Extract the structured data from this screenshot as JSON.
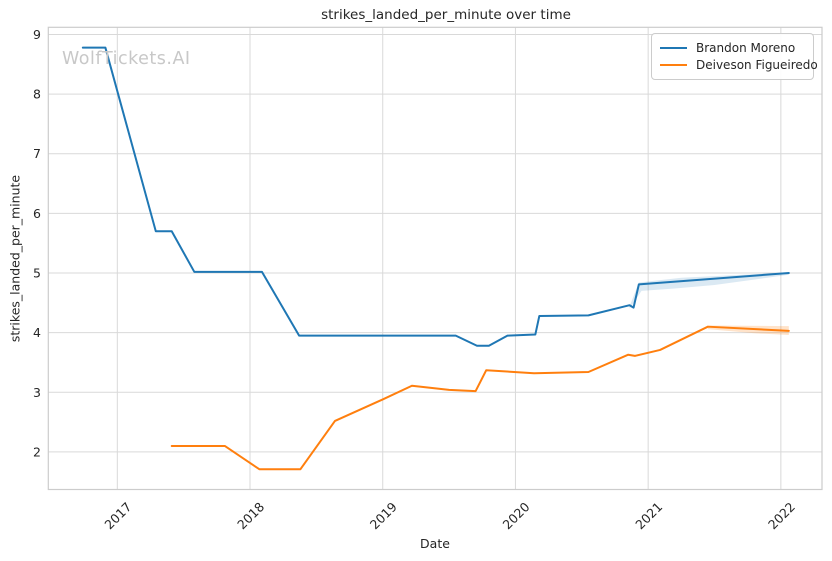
{
  "watermark": "WolfTickets.AI",
  "chart_data": {
    "type": "line",
    "title": "strikes_landed_per_minute over time",
    "xlabel": "Date",
    "ylabel": "strikes_landed_per_minute",
    "x_ticks": [
      2017,
      2018,
      2019,
      2020,
      2021,
      2022
    ],
    "y_ticks": [
      2,
      3,
      4,
      5,
      6,
      7,
      8,
      9
    ],
    "xlim": [
      2016.48,
      2022.31
    ],
    "ylim": [
      1.37,
      9.12
    ],
    "grid": true,
    "grid_color": "#d9d9d9",
    "spine_color": "#cccccc",
    "legend_position": "upper right",
    "series": [
      {
        "name": "Brandon Moreno",
        "color": "#1f77b4",
        "points": [
          [
            2016.74,
            8.78
          ],
          [
            2016.91,
            8.78
          ],
          [
            2017.29,
            5.7
          ],
          [
            2017.41,
            5.7
          ],
          [
            2017.58,
            5.02
          ],
          [
            2018.09,
            5.02
          ],
          [
            2018.37,
            3.95
          ],
          [
            2019.55,
            3.95
          ],
          [
            2019.71,
            3.78
          ],
          [
            2019.8,
            3.78
          ],
          [
            2019.94,
            3.95
          ],
          [
            2020.15,
            3.97
          ],
          [
            2020.18,
            4.28
          ],
          [
            2020.55,
            4.29
          ],
          [
            2020.86,
            4.46
          ],
          [
            2020.89,
            4.42
          ],
          [
            2020.93,
            4.81
          ],
          [
            2022.06,
            5.0
          ]
        ]
      },
      {
        "name": "Deiveson Figueiredo",
        "color": "#ff7f0e",
        "points": [
          [
            2017.41,
            2.1
          ],
          [
            2017.81,
            2.1
          ],
          [
            2018.07,
            1.71
          ],
          [
            2018.38,
            1.71
          ],
          [
            2018.64,
            2.52
          ],
          [
            2019.0,
            2.88
          ],
          [
            2019.22,
            3.11
          ],
          [
            2019.5,
            3.04
          ],
          [
            2019.7,
            3.02
          ],
          [
            2019.78,
            3.37
          ],
          [
            2020.14,
            3.32
          ],
          [
            2020.55,
            3.34
          ],
          [
            2020.85,
            3.63
          ],
          [
            2020.9,
            3.61
          ],
          [
            2021.09,
            3.71
          ],
          [
            2021.45,
            4.1
          ],
          [
            2022.06,
            4.03
          ]
        ]
      }
    ],
    "bands": [
      {
        "series": "Brandon Moreno",
        "color": "#1f77b4",
        "opacity": 0.16,
        "upper": [
          [
            2020.86,
            4.44
          ],
          [
            2020.93,
            4.84
          ],
          [
            2021.25,
            4.92
          ],
          [
            2022.06,
            5.01
          ]
        ],
        "lower": [
          [
            2020.86,
            4.4
          ],
          [
            2020.95,
            4.7
          ],
          [
            2021.2,
            4.74
          ],
          [
            2021.5,
            4.8
          ],
          [
            2022.06,
            4.97
          ]
        ]
      },
      {
        "series": "Deiveson Figueiredo",
        "color": "#ff7f0e",
        "opacity": 0.22,
        "upper": [
          [
            2021.45,
            4.12
          ],
          [
            2022.06,
            4.11
          ]
        ],
        "lower": [
          [
            2021.45,
            4.06
          ],
          [
            2021.8,
            3.99
          ],
          [
            2022.06,
            3.96
          ]
        ]
      }
    ]
  }
}
